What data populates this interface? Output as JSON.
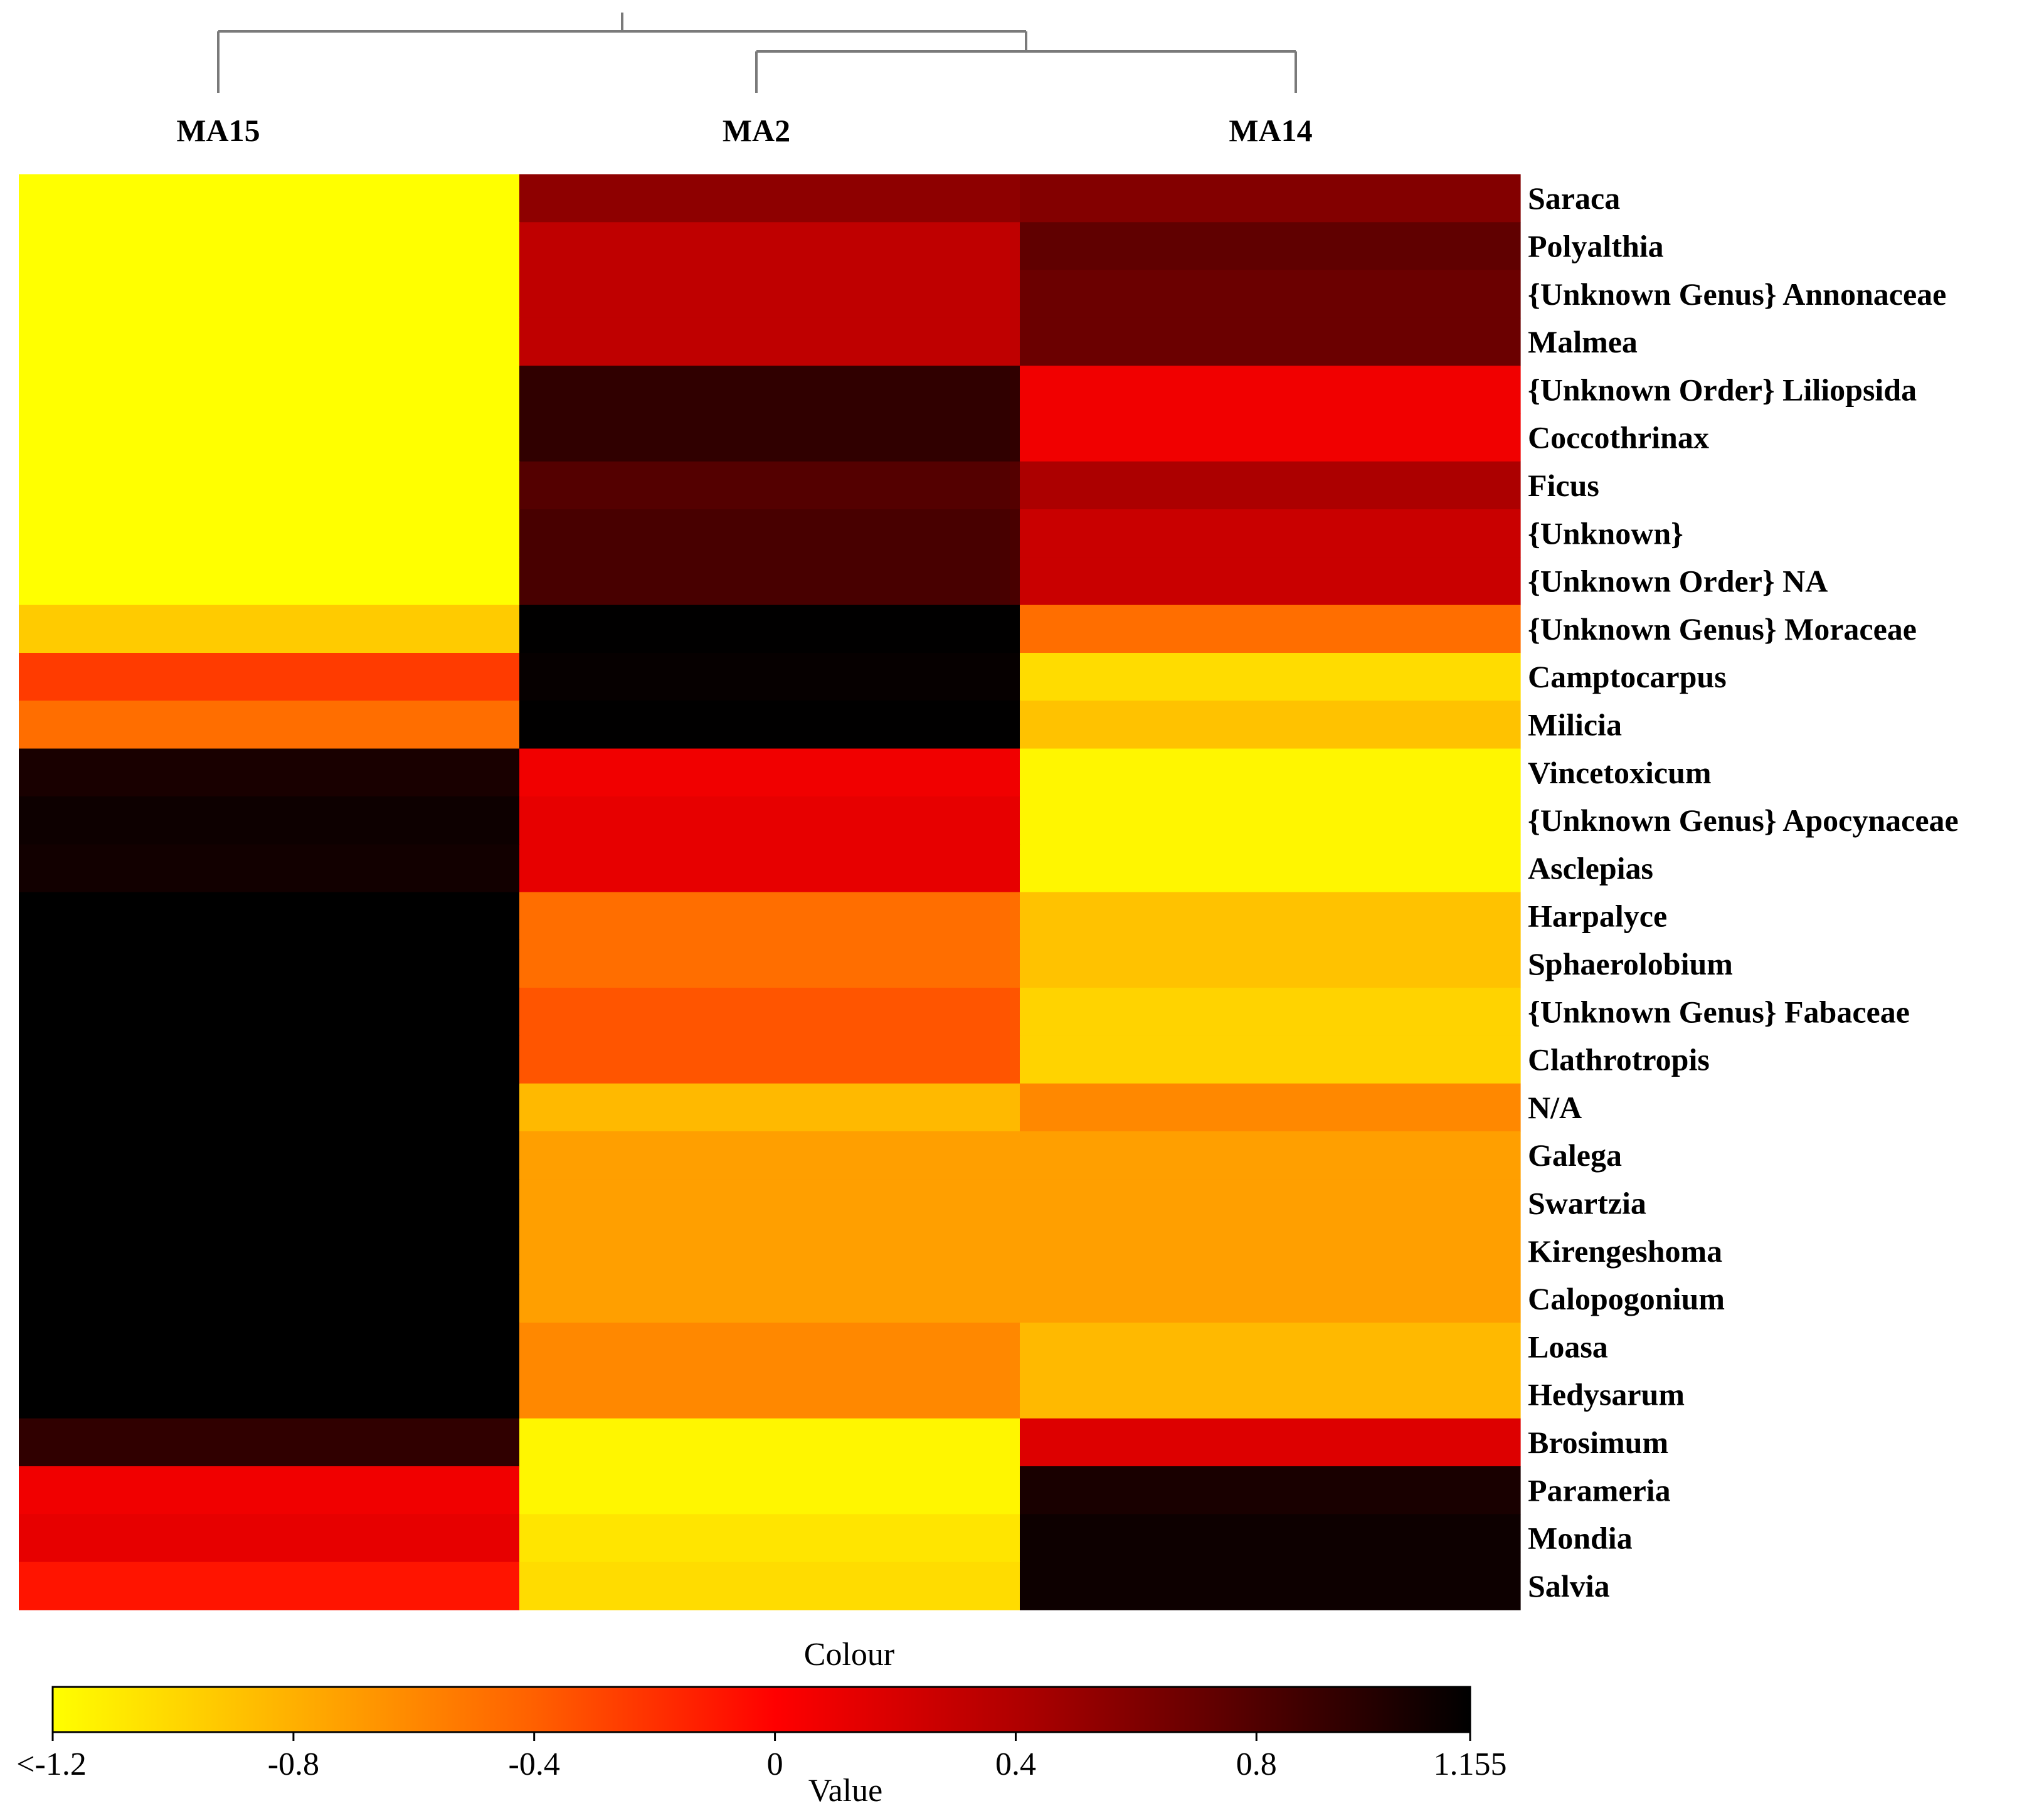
{
  "chart_data": {
    "type": "heatmap",
    "title": "",
    "columns": [
      "MA15",
      "MA2",
      "MA14"
    ],
    "rows": [
      "Saraca",
      "Polyalthia",
      "{Unknown Genus} Annonaceae",
      "Malmea",
      "{Unknown Order} Liliopsida",
      "Coccothrinax",
      "Ficus",
      "{Unknown}",
      "{Unknown Order} NA",
      "{Unknown Genus} Moraceae",
      "Camptocarpus",
      "Milicia",
      "Vincetoxicum",
      "{Unknown Genus} Apocynaceae",
      "Asclepias",
      "Harpalyce",
      "Sphaerolobium",
      "{Unknown Genus} Fabaceae",
      "Clathrotropis",
      "N/A",
      "Galega",
      "Swartzia",
      "Kirengeshoma",
      "Calopogonium",
      "Loasa",
      "Hedysarum",
      "Brosimum",
      "Parameria",
      "Mondia",
      "Salvia"
    ],
    "values": [
      [
        -1.2,
        0.55,
        0.6
      ],
      [
        -1.2,
        0.3,
        0.75
      ],
      [
        -1.2,
        0.3,
        0.7
      ],
      [
        -1.2,
        0.3,
        0.7
      ],
      [
        -1.2,
        0.95,
        0.05
      ],
      [
        -1.2,
        0.95,
        0.05
      ],
      [
        -1.2,
        0.8,
        0.4
      ],
      [
        -1.2,
        0.85,
        0.25
      ],
      [
        -1.2,
        0.85,
        0.25
      ],
      [
        -0.9,
        1.15,
        -0.45
      ],
      [
        -0.25,
        1.13,
        -1.0
      ],
      [
        -0.45,
        1.15,
        -0.85
      ],
      [
        1.05,
        0.05,
        -1.15
      ],
      [
        1.1,
        0.1,
        -1.15
      ],
      [
        1.08,
        0.1,
        -1.15
      ],
      [
        1.155,
        -0.45,
        -0.85
      ],
      [
        1.155,
        -0.45,
        -0.85
      ],
      [
        1.155,
        -0.35,
        -0.95
      ],
      [
        1.155,
        -0.35,
        -0.95
      ],
      [
        1.155,
        -0.8,
        -0.55
      ],
      [
        1.155,
        -0.65,
        -0.65
      ],
      [
        1.155,
        -0.65,
        -0.65
      ],
      [
        1.155,
        -0.65,
        -0.65
      ],
      [
        1.155,
        -0.65,
        -0.65
      ],
      [
        1.155,
        -0.55,
        -0.8
      ],
      [
        1.155,
        -0.55,
        -0.8
      ],
      [
        0.95,
        -1.15,
        0.15
      ],
      [
        0.05,
        -1.15,
        1.05
      ],
      [
        0.1,
        -1.05,
        1.1
      ],
      [
        -0.1,
        -1.0,
        1.1
      ]
    ],
    "color_scale": {
      "label": "Colour",
      "axis_label": "Value",
      "min": -1.2,
      "max": 1.155,
      "stops": [
        "#ffff00",
        "#ff9800",
        "#ff0000",
        "#8b0000",
        "#000000"
      ],
      "ticks": [
        {
          "value": -1.2,
          "label": "<-1.2"
        },
        {
          "value": -0.8,
          "label": "-0.8"
        },
        {
          "value": -0.4,
          "label": "-0.4"
        },
        {
          "value": 0,
          "label": "0"
        },
        {
          "value": 0.4,
          "label": "0.4"
        },
        {
          "value": 0.8,
          "label": "0.8"
        },
        {
          "value": 1.155,
          "label": "1.155"
        }
      ]
    },
    "dendrogram": "columns: MA15 joined with (MA2, MA14)"
  }
}
